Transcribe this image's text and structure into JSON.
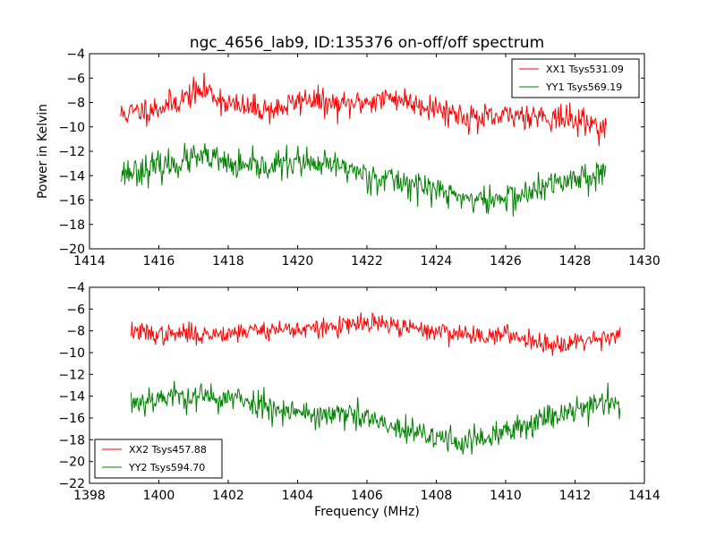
{
  "title": "ngc_4656_lab9, ID:135376 on-off/off spectrum",
  "ylabel": "Power in Kelvin",
  "xlabel": "Frequency (MHz)",
  "colors": {
    "red": "#ff0000",
    "green": "#008000"
  },
  "chart_data": [
    {
      "type": "line",
      "title": "ngc_4656_lab9, ID:135376 on-off/off spectrum",
      "xlabel": "",
      "ylabel": "Power in Kelvin",
      "xlim": [
        1414,
        1430
      ],
      "ylim": [
        -20,
        -4
      ],
      "xticks": [
        1414,
        1416,
        1418,
        1420,
        1422,
        1424,
        1426,
        1428,
        1430
      ],
      "yticks": [
        -20,
        -18,
        -16,
        -14,
        -12,
        -10,
        -8,
        -6,
        -4
      ],
      "legend_position": "top-right",
      "x_range": [
        1414.9,
        1428.9
      ],
      "series": [
        {
          "name": "XX1 Tsys531.09",
          "color": "#ff0000",
          "noise": 0.55,
          "seed": 11,
          "points": [
            [
              1414.9,
              -9.0
            ],
            [
              1415.5,
              -8.7
            ],
            [
              1416.0,
              -8.4
            ],
            [
              1416.5,
              -8.0
            ],
            [
              1417.0,
              -7.2
            ],
            [
              1417.4,
              -7.0
            ],
            [
              1417.8,
              -7.8
            ],
            [
              1418.3,
              -8.4
            ],
            [
              1418.8,
              -8.5
            ],
            [
              1419.3,
              -8.6
            ],
            [
              1419.8,
              -8.2
            ],
            [
              1420.3,
              -7.6
            ],
            [
              1420.8,
              -8.1
            ],
            [
              1421.3,
              -8.3
            ],
            [
              1421.8,
              -8.0
            ],
            [
              1422.3,
              -7.8
            ],
            [
              1422.8,
              -7.6
            ],
            [
              1423.3,
              -8.0
            ],
            [
              1423.8,
              -8.3
            ],
            [
              1424.3,
              -8.7
            ],
            [
              1424.8,
              -9.1
            ],
            [
              1425.3,
              -9.4
            ],
            [
              1425.8,
              -9.3
            ],
            [
              1426.3,
              -9.0
            ],
            [
              1426.8,
              -9.0
            ],
            [
              1427.3,
              -9.2
            ],
            [
              1427.8,
              -9.4
            ],
            [
              1428.3,
              -9.6
            ],
            [
              1428.9,
              -10.1
            ]
          ]
        },
        {
          "name": "YY1 Tsys569.19",
          "color": "#008000",
          "noise": 0.6,
          "seed": 23,
          "points": [
            [
              1414.9,
              -13.8
            ],
            [
              1415.5,
              -13.5
            ],
            [
              1416.0,
              -13.3
            ],
            [
              1416.5,
              -13.0
            ],
            [
              1417.0,
              -12.6
            ],
            [
              1417.5,
              -12.6
            ],
            [
              1418.0,
              -13.1
            ],
            [
              1418.5,
              -13.4
            ],
            [
              1419.0,
              -13.3
            ],
            [
              1419.5,
              -13.1
            ],
            [
              1420.0,
              -12.8
            ],
            [
              1420.5,
              -13.3
            ],
            [
              1421.0,
              -13.1
            ],
            [
              1421.5,
              -13.4
            ],
            [
              1422.0,
              -14.0
            ],
            [
              1422.5,
              -14.2
            ],
            [
              1423.0,
              -14.5
            ],
            [
              1423.5,
              -14.8
            ],
            [
              1424.0,
              -15.2
            ],
            [
              1424.5,
              -15.6
            ],
            [
              1425.0,
              -15.9
            ],
            [
              1425.5,
              -16.1
            ],
            [
              1426.0,
              -15.8
            ],
            [
              1426.5,
              -15.6
            ],
            [
              1427.0,
              -15.1
            ],
            [
              1427.5,
              -14.6
            ],
            [
              1428.0,
              -14.2
            ],
            [
              1428.5,
              -13.9
            ],
            [
              1428.9,
              -13.8
            ]
          ]
        }
      ]
    },
    {
      "type": "line",
      "title": "",
      "xlabel": "Frequency (MHz)",
      "ylabel": "",
      "xlim": [
        1398,
        1414
      ],
      "ylim": [
        -22,
        -4
      ],
      "xticks": [
        1398,
        1400,
        1402,
        1404,
        1406,
        1408,
        1410,
        1412,
        1414
      ],
      "yticks": [
        -22,
        -20,
        -18,
        -16,
        -14,
        -12,
        -10,
        -8,
        -6,
        -4
      ],
      "legend_position": "bottom-left",
      "x_range": [
        1399.2,
        1413.3
      ],
      "series": [
        {
          "name": "XX2 Tsys457.88",
          "color": "#ff0000",
          "noise": 0.45,
          "seed": 37,
          "points": [
            [
              1399.2,
              -8.0
            ],
            [
              1399.8,
              -8.3
            ],
            [
              1400.3,
              -8.4
            ],
            [
              1400.8,
              -8.2
            ],
            [
              1401.3,
              -8.4
            ],
            [
              1401.8,
              -8.2
            ],
            [
              1402.3,
              -8.1
            ],
            [
              1402.8,
              -7.9
            ],
            [
              1403.3,
              -7.9
            ],
            [
              1403.8,
              -7.8
            ],
            [
              1404.3,
              -7.9
            ],
            [
              1404.8,
              -7.7
            ],
            [
              1405.3,
              -7.6
            ],
            [
              1405.8,
              -7.4
            ],
            [
              1406.3,
              -7.3
            ],
            [
              1406.8,
              -7.6
            ],
            [
              1407.3,
              -7.8
            ],
            [
              1407.8,
              -8.0
            ],
            [
              1408.3,
              -8.1
            ],
            [
              1408.8,
              -8.3
            ],
            [
              1409.3,
              -8.4
            ],
            [
              1409.8,
              -8.4
            ],
            [
              1410.3,
              -8.5
            ],
            [
              1410.8,
              -8.8
            ],
            [
              1411.3,
              -9.3
            ],
            [
              1411.8,
              -9.0
            ],
            [
              1412.3,
              -8.8
            ],
            [
              1412.8,
              -8.6
            ],
            [
              1413.3,
              -8.3
            ]
          ]
        },
        {
          "name": "YY2 Tsys594.70",
          "color": "#008000",
          "noise": 0.65,
          "seed": 53,
          "points": [
            [
              1399.2,
              -14.6
            ],
            [
              1399.8,
              -14.2
            ],
            [
              1400.3,
              -14.0
            ],
            [
              1400.8,
              -14.0
            ],
            [
              1401.3,
              -14.1
            ],
            [
              1401.8,
              -14.2
            ],
            [
              1402.3,
              -14.3
            ],
            [
              1402.8,
              -14.6
            ],
            [
              1403.3,
              -15.0
            ],
            [
              1403.8,
              -15.3
            ],
            [
              1404.3,
              -15.6
            ],
            [
              1404.8,
              -15.8
            ],
            [
              1405.3,
              -15.7
            ],
            [
              1405.8,
              -15.9
            ],
            [
              1406.3,
              -16.4
            ],
            [
              1406.8,
              -17.0
            ],
            [
              1407.3,
              -17.4
            ],
            [
              1407.8,
              -17.7
            ],
            [
              1408.3,
              -17.9
            ],
            [
              1408.8,
              -18.2
            ],
            [
              1409.3,
              -18.0
            ],
            [
              1409.8,
              -17.6
            ],
            [
              1410.3,
              -17.0
            ],
            [
              1410.8,
              -16.3
            ],
            [
              1411.3,
              -15.8
            ],
            [
              1411.8,
              -15.3
            ],
            [
              1412.3,
              -14.9
            ],
            [
              1412.8,
              -14.6
            ],
            [
              1413.3,
              -14.4
            ]
          ]
        }
      ]
    }
  ]
}
